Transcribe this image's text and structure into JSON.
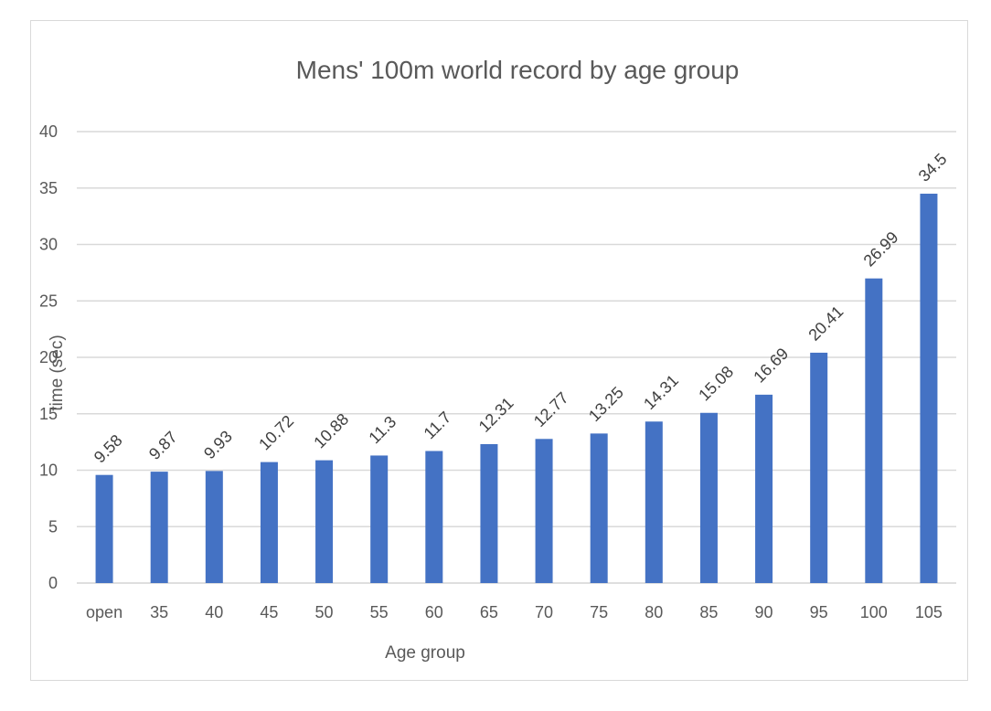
{
  "chart_data": {
    "type": "bar",
    "title": "Mens' 100m world record by age group",
    "xlabel": "Age group",
    "ylabel": "time (sec)",
    "ylim": [
      0,
      40
    ],
    "yticks": [
      0,
      5,
      10,
      15,
      20,
      25,
      30,
      35,
      40
    ],
    "grid": true,
    "legend": "none",
    "categories": [
      "open",
      "35",
      "40",
      "45",
      "50",
      "55",
      "60",
      "65",
      "70",
      "75",
      "80",
      "85",
      "90",
      "95",
      "100",
      "105"
    ],
    "values": [
      9.58,
      9.87,
      9.93,
      10.72,
      10.88,
      11.3,
      11.7,
      12.31,
      12.77,
      13.25,
      14.31,
      15.08,
      16.69,
      20.41,
      26.99,
      34.5
    ],
    "data_labels": [
      "9.58",
      "9.87",
      "9.93",
      "10.72",
      "10.88",
      "11.3",
      "11.7",
      "12.31",
      "12.77",
      "13.25",
      "14.31",
      "15.08",
      "16.69",
      "20.41",
      "26.99",
      "34.5"
    ],
    "bar_color": "#4472c4",
    "grid_color": "#d9d9d9"
  }
}
